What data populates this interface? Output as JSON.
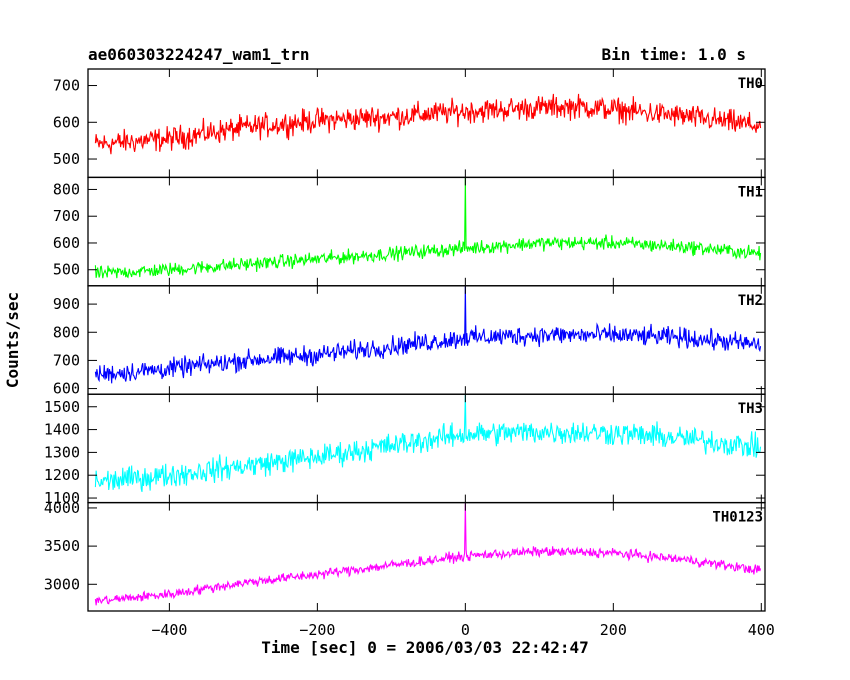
{
  "chart_data": {
    "type": "line",
    "title": "ae060303224247_wam1_trn",
    "bin_time": "Bin time: 1.0 s",
    "xlabel": "Time [sec] 0 = 2006/03/03 22:42:47",
    "ylabel": "Counts/sec",
    "xlim": [
      -510,
      405
    ],
    "x_ticks": [
      -400,
      -200,
      0,
      200,
      400
    ],
    "x_tick_labels": [
      "−400",
      "−200",
      "0",
      "200",
      "400"
    ],
    "spike_x": 0,
    "panels": [
      {
        "name": "TH0",
        "color": "#ff0000",
        "ylim": [
          450,
          745
        ],
        "y_ticks": [
          500,
          600,
          700
        ],
        "trend": [
          [
            -500,
            540
          ],
          [
            -400,
            555
          ],
          [
            -300,
            585
          ],
          [
            -200,
            605
          ],
          [
            -100,
            615
          ],
          [
            0,
            630
          ],
          [
            100,
            640
          ],
          [
            150,
            643
          ],
          [
            200,
            635
          ],
          [
            300,
            615
          ],
          [
            400,
            590
          ]
        ],
        "noise": 28,
        "spike_peak": null
      },
      {
        "name": "TH1",
        "color": "#00ff00",
        "ylim": [
          440,
          845
        ],
        "y_ticks": [
          500,
          600,
          700,
          800
        ],
        "trend": [
          [
            -500,
            485
          ],
          [
            -400,
            500
          ],
          [
            -300,
            520
          ],
          [
            -200,
            540
          ],
          [
            -100,
            560
          ],
          [
            0,
            580
          ],
          [
            100,
            600
          ],
          [
            200,
            600
          ],
          [
            300,
            585
          ],
          [
            400,
            560
          ]
        ],
        "noise": 22,
        "spike_peak": 845
      },
      {
        "name": "TH2",
        "color": "#0000ff",
        "ylim": [
          580,
          965
        ],
        "y_ticks": [
          600,
          700,
          800,
          900
        ],
        "trend": [
          [
            -500,
            650
          ],
          [
            -400,
            670
          ],
          [
            -300,
            700
          ],
          [
            -200,
            720
          ],
          [
            -100,
            750
          ],
          [
            0,
            780
          ],
          [
            100,
            790
          ],
          [
            200,
            790
          ],
          [
            300,
            780
          ],
          [
            400,
            755
          ]
        ],
        "noise": 30,
        "spike_peak": 965
      },
      {
        "name": "TH3",
        "color": "#00ffff",
        "ylim": [
          1080,
          1555
        ],
        "y_ticks": [
          1100,
          1200,
          1300,
          1400,
          1500
        ],
        "trend": [
          [
            -500,
            1170
          ],
          [
            -400,
            1200
          ],
          [
            -300,
            1240
          ],
          [
            -200,
            1280
          ],
          [
            -100,
            1330
          ],
          [
            0,
            1380
          ],
          [
            100,
            1390
          ],
          [
            200,
            1385
          ],
          [
            300,
            1360
          ],
          [
            400,
            1320
          ]
        ],
        "noise": 45,
        "spike_peak": 1555
      },
      {
        "name": "TH0123",
        "color": "#ff00ff",
        "ylim": [
          2650,
          4070
        ],
        "y_ticks": [
          3000,
          3500,
          4000
        ],
        "trend": [
          [
            -500,
            2780
          ],
          [
            -400,
            2870
          ],
          [
            -300,
            3020
          ],
          [
            -200,
            3130
          ],
          [
            -100,
            3250
          ],
          [
            0,
            3370
          ],
          [
            100,
            3430
          ],
          [
            200,
            3410
          ],
          [
            300,
            3320
          ],
          [
            400,
            3180
          ]
        ],
        "noise": 55,
        "spike_peak": 4070
      }
    ]
  }
}
